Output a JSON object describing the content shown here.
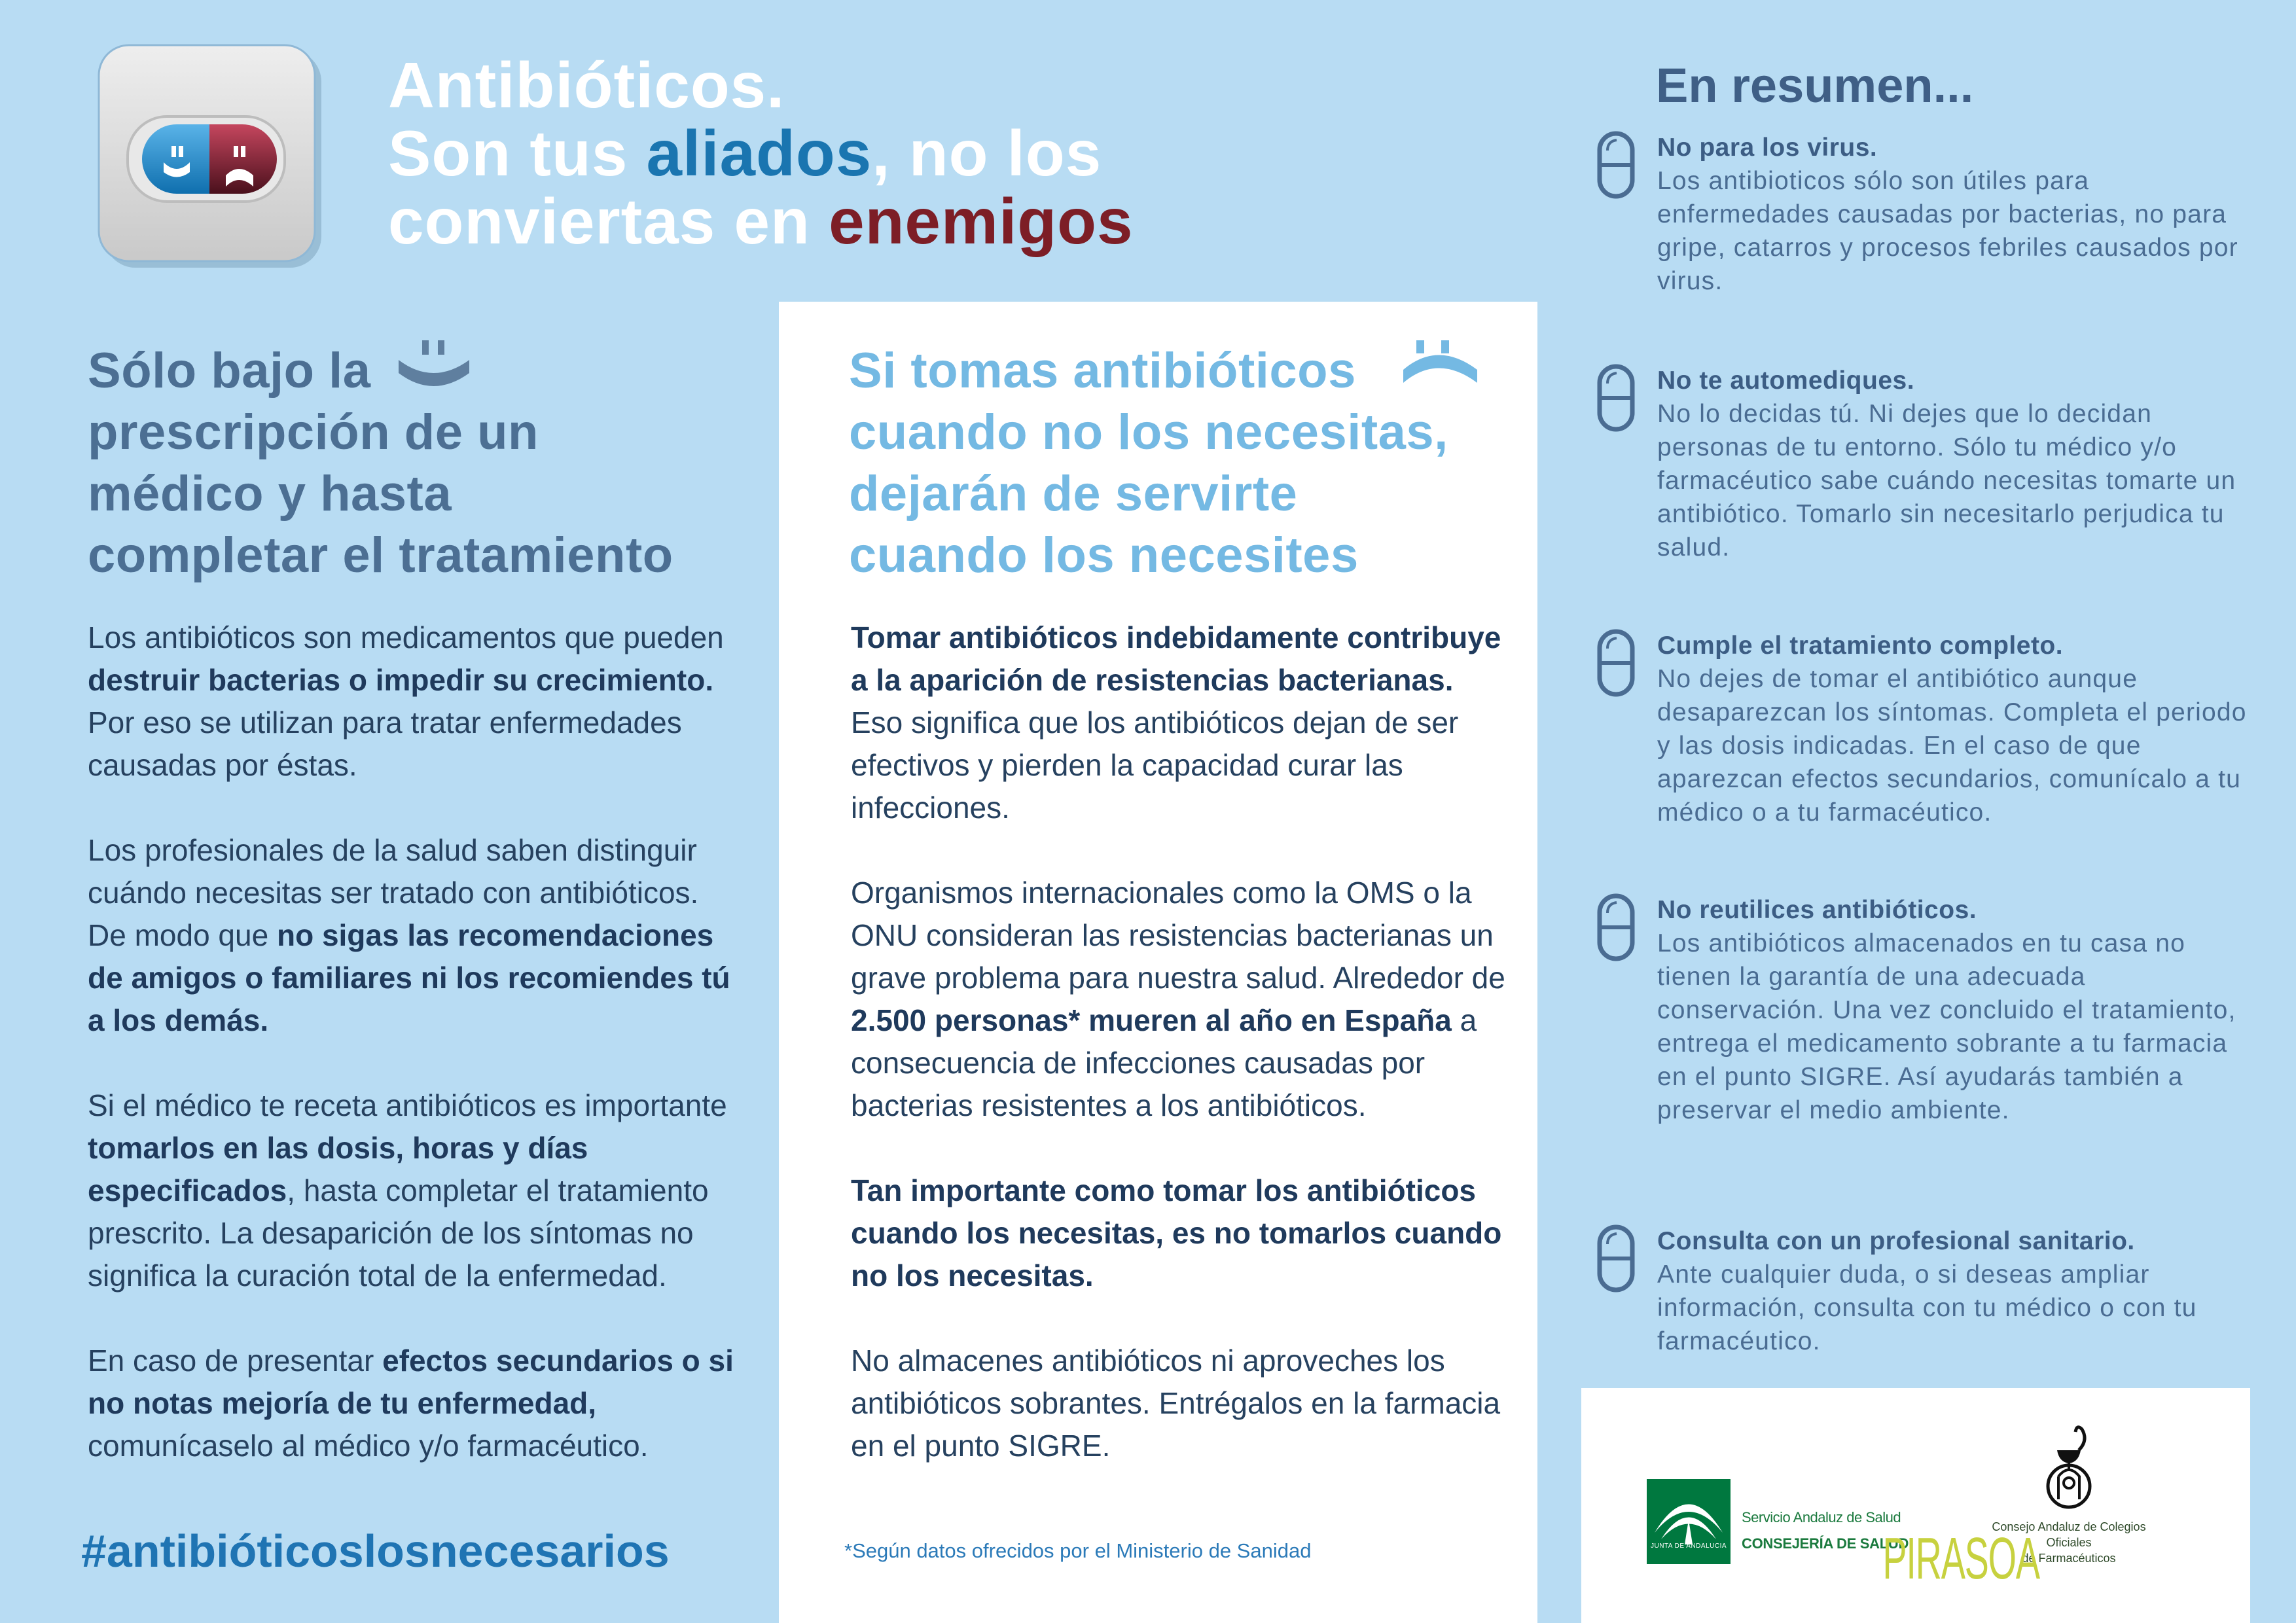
{
  "colors": {
    "background": "#b8dcf3",
    "accent_blue": "#1a75b0",
    "accent_red": "#7d1e26",
    "heading_slate": "#4c6f93",
    "heading_light": "#74b9e3",
    "pirasoa_green": "#c7d13f",
    "junta_green": "#00783f"
  },
  "header": {
    "title_line1": "Antibióticos.",
    "title_line2_a": "Son tus ",
    "title_line2_highlight": "aliados",
    "title_line2_b": ", no los",
    "title_line3_a": "conviertas en ",
    "title_line3_highlight": "enemigos",
    "icon": "pill-capsule-happy-sad-icon"
  },
  "left": {
    "heading_lines": [
      "Sólo bajo la",
      "prescripción de un",
      "médico y hasta",
      "completar el tratamiento"
    ],
    "heading_icon": "smiley-face-icon",
    "paragraphs": [
      [
        {
          "t": "Los antibióticos son medicamentos que pueden "
        },
        {
          "t": "destruir bacterias o impedir su crecimiento.",
          "b": true
        },
        {
          "t": " Por eso se utilizan para tratar enfermedades causadas por éstas."
        }
      ],
      [
        {
          "t": "Los profesionales de la salud saben distinguir cuándo necesitas ser tratado con antibióticos. De modo que "
        },
        {
          "t": "no sigas las recomendaciones de amigos o familiares ni los recomiendes tú a los demás.",
          "b": true
        }
      ],
      [
        {
          "t": "Si el médico te receta antibióticos es importante "
        },
        {
          "t": "tomarlos en las dosis, horas y días especificados",
          "b": true
        },
        {
          "t": ", hasta completar el tratamiento prescrito. La desaparición de los síntomas no significa la curación total de la enfermedad."
        }
      ],
      [
        {
          "t": "En caso de presentar "
        },
        {
          "t": "efectos secundarios o si no notas mejoría de tu enfermedad,",
          "b": true
        },
        {
          "t": " comunícaselo al médico y/o farmacéutico."
        }
      ]
    ],
    "hashtag": "#antibióticoslosnecesarios"
  },
  "middle": {
    "heading_lines": [
      "Si tomas antibióticos",
      "cuando no los necesitas,",
      "dejarán de servirte",
      "cuando los necesites"
    ],
    "heading_icon": "sad-face-icon",
    "paragraphs": [
      [
        {
          "t": "Tomar antibióticos indebidamente contribuye a la aparición  de resistencias bacterianas.",
          "b": true
        },
        {
          "t": " Eso significa que los antibióticos dejan de ser efectivos y pierden la capacidad curar las infecciones."
        }
      ],
      [
        {
          "t": "Organismos internacionales como la OMS o la ONU consideran las resistencias bacterianas un grave problema para nuestra salud. Alrededor de "
        },
        {
          "t": "2.500 personas* mueren al año en España",
          "b": true
        },
        {
          "t": " a consecuencia de infecciones causadas por bacterias resistentes a los antibióticos."
        }
      ],
      [
        {
          "t": "Tan importante como tomar los antibióticos cuando los necesitas, es  no tomarlos cuando no los necesitas.",
          "b": true
        }
      ],
      [
        {
          "t": "No almacenes antibióticos ni aproveches los antibióticos sobrantes. Entrégalos en la farmacia en el punto SIGRE."
        }
      ]
    ],
    "footnote": "*Según datos ofrecidos por el Ministerio de Sanidad"
  },
  "summary": {
    "title": "En resumen...",
    "item_icon": "capsule-outline-icon",
    "items": [
      {
        "title": "No para los virus.",
        "body": "Los antibioticos sólo son útiles para enfermedades causadas por bacterias, no para gripe, catarros y procesos febriles causados por virus."
      },
      {
        "title": "No te automediques.",
        "body": "No lo decidas tú. Ni dejes que lo decidan personas de tu entorno. Sólo tu médico y/o farmacéutico sabe cuándo necesitas tomarte un antibiótico. Tomarlo sin necesitarlo perjudica tu salud."
      },
      {
        "title": "Cumple el tratamiento completo.",
        "body": "No dejes de tomar el antibiótico aunque desaparezcan los síntomas. Completa el periodo y las dosis indicadas. En el caso de que aparezcan efectos secundarios, comunícalo a tu médico o a tu farmacéutico."
      },
      {
        "title": "No reutilices antibióticos.",
        "body": "Los antibióticos almacenados en tu casa no tienen la garantía de una adecuada conservación. Una vez concluido el tratamiento, entrega el medicamento sobrante a tu farmacia en el punto SIGRE. Así ayudarás también a preservar el medio ambiente."
      },
      {
        "title": "Consulta con un profesional sanitario.",
        "body": "Ante cualquier duda, o si deseas ampliar información, consulta con tu médico o con tu farmacéutico."
      }
    ]
  },
  "logos": {
    "junta_label": "JUNTA DE ANDALUCIA",
    "sas_line1": "Servicio Andaluz de Salud",
    "sas_line2": "CONSEJERÍA DE SALUD",
    "consejo_line1": "Consejo Andaluz de Colegios Oficiales",
    "consejo_line2": "de Farmacéuticos",
    "pirasoa": "PIRASOA"
  }
}
